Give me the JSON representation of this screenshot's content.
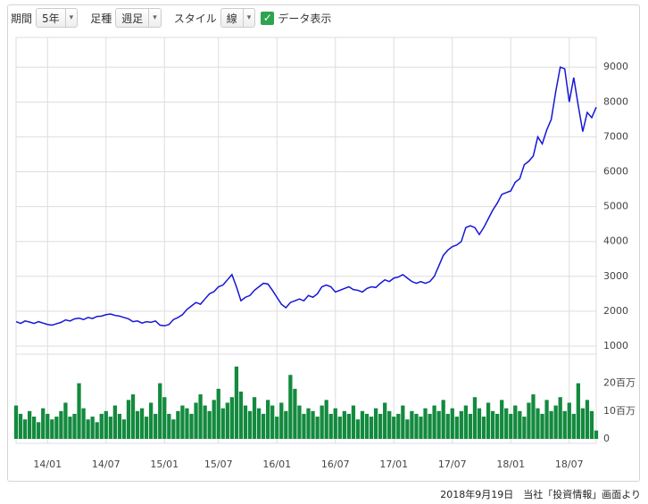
{
  "controls": {
    "period_label": "期間",
    "period": "5年",
    "bar_label": "足種",
    "bar": "週足",
    "style_label": "スタイル",
    "style": "線",
    "data_label": "データ表示"
  },
  "chart_data": [
    {
      "type": "line",
      "color": "#1616d6",
      "grid": true,
      "categories": [
        null,
        null,
        null,
        null,
        null,
        null,
        null,
        "14/01",
        null,
        null,
        null,
        null,
        null,
        null,
        null,
        null,
        null,
        null,
        null,
        null,
        "14/07",
        null,
        null,
        null,
        null,
        null,
        null,
        null,
        null,
        null,
        null,
        null,
        null,
        "15/01",
        null,
        null,
        null,
        null,
        null,
        null,
        null,
        null,
        null,
        null,
        null,
        "15/07",
        null,
        null,
        null,
        null,
        null,
        null,
        null,
        null,
        null,
        null,
        null,
        null,
        "16/01",
        null,
        null,
        null,
        null,
        null,
        null,
        null,
        null,
        null,
        null,
        null,
        null,
        "16/07",
        null,
        null,
        null,
        null,
        null,
        null,
        null,
        null,
        null,
        null,
        null,
        null,
        "17/01",
        null,
        null,
        null,
        null,
        null,
        null,
        null,
        null,
        null,
        null,
        null,
        null,
        "17/07",
        null,
        null,
        null,
        null,
        null,
        null,
        null,
        null,
        null,
        null,
        null,
        null,
        "18/01",
        null,
        null,
        null,
        null,
        null,
        null,
        null,
        null,
        null,
        null,
        null,
        null,
        "18/07",
        null,
        null,
        null,
        null,
        null,
        null
      ],
      "values": [
        1700,
        1650,
        1720,
        1690,
        1650,
        1700,
        1660,
        1620,
        1600,
        1640,
        1680,
        1750,
        1720,
        1780,
        1800,
        1760,
        1820,
        1790,
        1850,
        1860,
        1900,
        1920,
        1880,
        1860,
        1820,
        1780,
        1700,
        1720,
        1660,
        1700,
        1680,
        1720,
        1600,
        1580,
        1620,
        1760,
        1820,
        1900,
        2050,
        2150,
        2250,
        2200,
        2350,
        2500,
        2560,
        2700,
        2750,
        2900,
        3050,
        2700,
        2300,
        2400,
        2450,
        2600,
        2700,
        2800,
        2780,
        2600,
        2400,
        2200,
        2100,
        2250,
        2300,
        2350,
        2300,
        2450,
        2400,
        2500,
        2700,
        2750,
        2700,
        2550,
        2600,
        2650,
        2700,
        2620,
        2600,
        2550,
        2650,
        2700,
        2680,
        2800,
        2900,
        2850,
        2950,
        2980,
        3050,
        2950,
        2850,
        2800,
        2850,
        2800,
        2850,
        3000,
        3300,
        3600,
        3750,
        3850,
        3900,
        4000,
        4400,
        4450,
        4400,
        4200,
        4400,
        4650,
        4900,
        5100,
        5350,
        5400,
        5450,
        5700,
        5800,
        6200,
        6300,
        6450,
        7000,
        6800,
        7200,
        7500,
        8300,
        9000,
        8950,
        8000,
        8700,
        7900,
        7150,
        7700,
        7550,
        7850
      ],
      "ylim": [
        820,
        9850
      ],
      "yticks": [
        1000,
        2000,
        3000,
        4000,
        5000,
        6000,
        7000,
        8000,
        9000
      ]
    },
    {
      "type": "bar",
      "color": "#138a3e",
      "grid": false,
      "values": [
        12,
        9,
        7,
        10,
        8,
        6,
        11,
        9,
        7,
        8,
        10,
        13,
        8,
        9,
        20,
        11,
        7,
        8,
        6,
        9,
        10,
        8,
        12,
        9,
        7,
        14,
        16,
        10,
        11,
        8,
        13,
        9,
        20,
        15,
        9,
        7,
        10,
        12,
        11,
        9,
        13,
        16,
        12,
        10,
        14,
        18,
        11,
        13,
        15,
        26,
        17,
        12,
        10,
        15,
        11,
        9,
        14,
        12,
        8,
        13,
        10,
        23,
        18,
        12,
        9,
        11,
        10,
        8,
        12,
        14,
        9,
        11,
        8,
        10,
        9,
        12,
        7,
        10,
        9,
        8,
        11,
        9,
        13,
        10,
        8,
        9,
        12,
        7,
        10,
        9,
        8,
        11,
        9,
        12,
        10,
        14,
        9,
        11,
        8,
        10,
        12,
        9,
        15,
        11,
        8,
        13,
        10,
        9,
        14,
        11,
        9,
        12,
        10,
        8,
        13,
        16,
        11,
        9,
        14,
        10,
        12,
        15,
        10,
        13,
        9,
        20,
        11,
        14,
        10,
        3
      ],
      "ylim": [
        0,
        29.5
      ],
      "yticks": [
        0,
        {
          "value": 10,
          "label": "10百万"
        },
        {
          "value": 20,
          "label": "20百万"
        }
      ]
    }
  ],
  "caption": "2018年9月19日　当社「投資情報」画面より"
}
